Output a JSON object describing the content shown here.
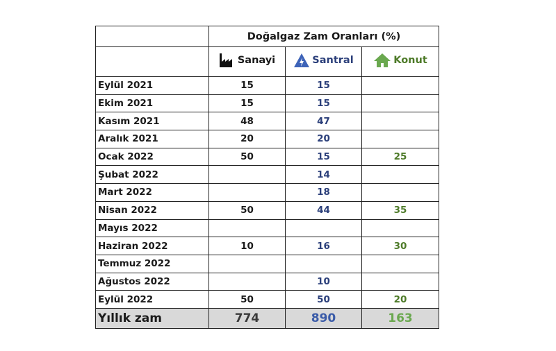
{
  "header": {
    "title": "Doğalgaz Zam Oranları (%)",
    "columns": [
      "Sanayi",
      "Santral",
      "Konut"
    ]
  },
  "table": {
    "rows": [
      [
        "Eylül 2021",
        15,
        15,
        null
      ],
      [
        "Ekim 2021",
        15,
        15,
        null
      ],
      [
        "Kasım 2021",
        48,
        47,
        null
      ],
      [
        "Aralık 2021",
        20,
        20,
        null
      ],
      [
        "Ocak 2022",
        50,
        15,
        25
      ],
      [
        "Şubat 2022",
        null,
        14,
        null
      ],
      [
        "Mart 2022",
        null,
        18,
        null
      ],
      [
        "Nisan 2022",
        50,
        44,
        35
      ],
      [
        "Mayıs 2022",
        null,
        null,
        null
      ],
      [
        "Haziran 2022",
        10,
        16,
        30
      ],
      [
        "Temmuz 2022",
        null,
        null,
        null
      ],
      [
        "Ağustos 2022",
        null,
        10,
        null
      ],
      [
        "Eylül 2022",
        50,
        50,
        20
      ]
    ]
  },
  "total": {
    "label": "Yıllık zam",
    "values": [
      774,
      890,
      163
    ]
  }
}
